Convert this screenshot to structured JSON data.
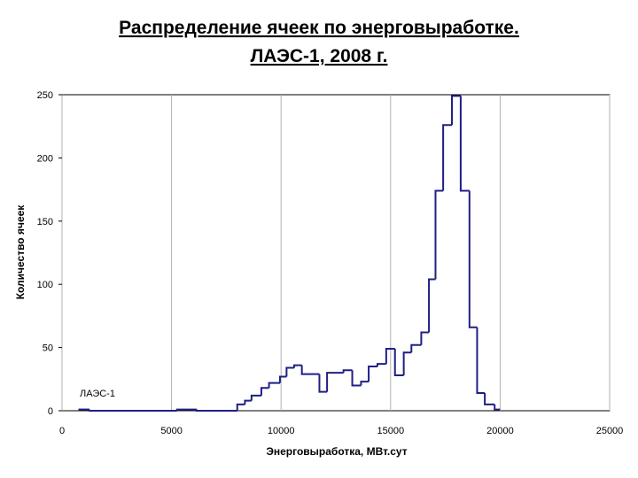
{
  "chart_data": {
    "type": "histogram",
    "title": [
      "Распределение ячеек по энерговыработке.",
      "ЛАЭС-1, 2008 г."
    ],
    "x_label": "Энерговыработка, МВт.сут",
    "y_label": "Количество ячеек",
    "series": [
      {
        "name": "ЛАЭС-1",
        "color": "#1f1f85",
        "bins": [
          750,
          1250,
          5250,
          6150,
          8000,
          8350,
          8650,
          9100,
          9450,
          9950,
          10250,
          10600,
          10950,
          11750,
          12100,
          12850,
          13250,
          13650,
          14000,
          14400,
          14800,
          15200,
          15600,
          15950,
          16400,
          16750,
          17050,
          17400,
          17800,
          18200,
          18600,
          18950,
          19300,
          19750,
          20000
        ],
        "values": [
          1,
          0,
          1,
          0,
          5,
          8,
          12,
          18,
          22,
          27,
          34,
          36,
          29,
          15,
          30,
          32,
          20,
          23,
          35,
          37,
          49,
          28,
          46,
          52,
          62,
          104,
          174,
          226,
          249,
          174,
          66,
          14,
          5,
          1
        ]
      }
    ],
    "xlim": [
      0,
      25000
    ],
    "xticks": [
      0,
      5000,
      10000,
      15000,
      20000,
      25000
    ],
    "ylim": [
      0,
      250
    ],
    "yticks": [
      0,
      50,
      100,
      150,
      200,
      250
    ],
    "grid": "x",
    "legend": "lower left"
  }
}
